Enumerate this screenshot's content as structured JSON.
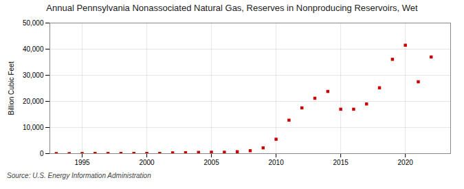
{
  "chart_data": {
    "type": "scatter",
    "title": "Annual Pennsylvania Nonassociated Natural Gas, Reserves in Nonproducing Reservoirs, Wet",
    "ylabel": "Billion Cubic Feet",
    "source": "Source: U.S. Energy Information Administration",
    "x": [
      1993,
      1994,
      1995,
      1996,
      1997,
      1998,
      1999,
      2000,
      2001,
      2002,
      2003,
      2004,
      2005,
      2006,
      2007,
      2008,
      2009,
      2010,
      2011,
      2012,
      2013,
      2014,
      2015,
      2016,
      2017,
      2018,
      2019,
      2020,
      2021,
      2022
    ],
    "values": [
      14,
      3,
      55,
      72,
      55,
      60,
      72,
      80,
      81,
      293,
      360,
      460,
      530,
      520,
      720,
      1100,
      2200,
      5500,
      12800,
      17500,
      21200,
      23800,
      17000,
      17000,
      19000,
      25200,
      36100,
      41500,
      27500,
      37000
    ],
    "color": "#cc0000",
    "marker": "square",
    "xlim": [
      1992.5,
      2023.5
    ],
    "xticks": [
      1995,
      2000,
      2005,
      2010,
      2015,
      2020
    ],
    "ylim": [
      0,
      50000
    ],
    "yticks": [
      0,
      {
        "value": 10000,
        "label": "10,000"
      },
      {
        "value": 20000,
        "label": "20,000"
      },
      {
        "value": 30000,
        "label": "30,000"
      },
      {
        "value": 40000,
        "label": "40,000"
      },
      {
        "value": 50000,
        "label": "50,000"
      }
    ],
    "grid": true
  }
}
